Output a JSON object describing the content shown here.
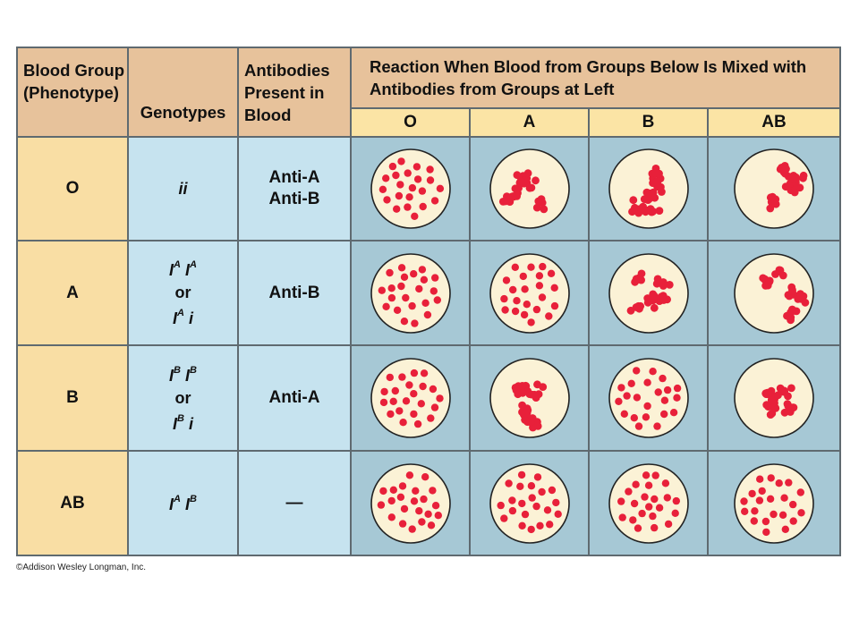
{
  "header": {
    "phenotype": "Blood Group (Phenotype)",
    "genotypes": "Genotypes",
    "antibodies": "Antibodies Present in Blood",
    "reaction": "Reaction When Blood from Groups Below Is Mixed with Antibodies from Groups at Left"
  },
  "columns": [
    "O",
    "A",
    "B",
    "AB"
  ],
  "rows": [
    {
      "group": "O",
      "genotype_lines": [
        "ii"
      ],
      "antibodies": [
        "Anti-A",
        "Anti-B"
      ],
      "reactions": [
        "separate",
        "clumped",
        "clumped",
        "clumped"
      ]
    },
    {
      "group": "A",
      "genotype_lines": [
        "IA IA",
        "or",
        "IA i"
      ],
      "antibodies": [
        "Anti-B"
      ],
      "reactions": [
        "separate",
        "separate",
        "clumped",
        "clumped"
      ]
    },
    {
      "group": "B",
      "genotype_lines": [
        "IB IB",
        "or",
        "IB i"
      ],
      "antibodies": [
        "Anti-A"
      ],
      "reactions": [
        "separate",
        "clumped",
        "separate",
        "clumped"
      ]
    },
    {
      "group": "AB",
      "genotype_lines": [
        "IA IB"
      ],
      "antibodies": [
        "—"
      ],
      "reactions": [
        "separate",
        "separate",
        "separate",
        "separate"
      ]
    }
  ],
  "colors": {
    "header": "#e7c29b",
    "tan": "#f9dea4",
    "light_blue": "#c6e3ef",
    "blue": "#a6c8d5",
    "dish": "#fbf2d6",
    "cell_red": "#e8203a"
  },
  "copyright": "©Addison Wesley Longman, Inc."
}
